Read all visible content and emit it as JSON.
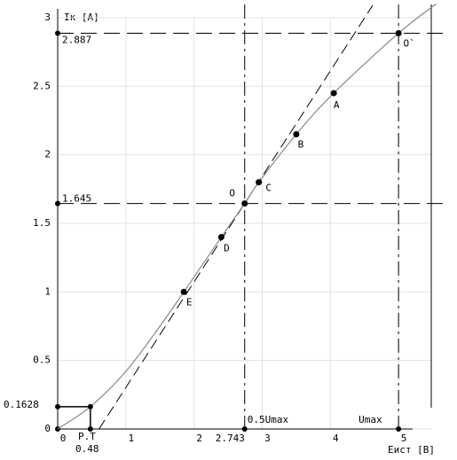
{
  "chart_data": {
    "type": "line",
    "x_label": "Eист [В]",
    "y_label": "Iк [А]",
    "xlim": [
      0,
      5.48
    ],
    "ylim": [
      0,
      3
    ],
    "xticks": [
      0,
      1,
      2,
      3,
      4,
      5
    ],
    "yticks": [
      0,
      0.5,
      1,
      1.5,
      2,
      2.5,
      3
    ],
    "grid": true,
    "series": [
      {
        "color": "#888888",
        "x": [
          0,
          0.48,
          1,
          1.5,
          1.85,
          2.4,
          2.743,
          2.95,
          3.5,
          4.05,
          5,
          5.55
        ],
        "values": [
          0,
          0.1628,
          0.42,
          0.75,
          1.0,
          1.4,
          1.645,
          1.8,
          2.15,
          2.45,
          2.887,
          3.1
        ]
      }
    ],
    "tangent": {
      "color": "#000000",
      "x": [
        0.607,
        4.62
      ],
      "values": [
        0,
        3.09
      ]
    },
    "points": [
      {
        "label": "O",
        "x": 2.743,
        "y": 1.645
      },
      {
        "label": "O`",
        "x": 5,
        "y": 2.887
      },
      {
        "label": "A",
        "x": 4.05,
        "y": 2.45
      },
      {
        "label": "B",
        "x": 3.5,
        "y": 2.15
      },
      {
        "label": "C",
        "x": 2.95,
        "y": 1.8
      },
      {
        "label": "D",
        "x": 2.4,
        "y": 1.4
      },
      {
        "label": "E",
        "x": 1.85,
        "y": 1.0
      }
    ],
    "y_marks": [
      {
        "value": 2.887,
        "label": "2.887"
      },
      {
        "value": 1.645,
        "label": "1.645"
      },
      {
        "value": 0.1628,
        "label": "0.1628"
      }
    ],
    "x_marks": [
      {
        "value": 0.48,
        "label": "0.48",
        "name": "Р.Т"
      },
      {
        "value": 2.743,
        "label": "2.743",
        "name": "0.5Umax"
      },
      {
        "value": 5,
        "name": "Umax"
      }
    ]
  }
}
